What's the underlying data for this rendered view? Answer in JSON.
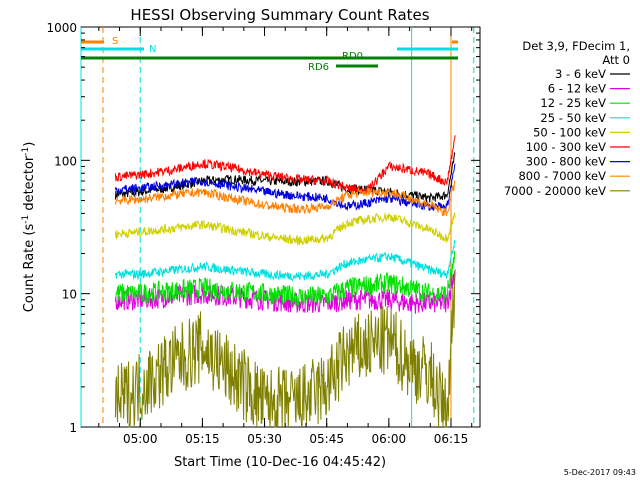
{
  "chart_data": {
    "type": "line",
    "title": "HESSI Observing Summary Count Rates",
    "xlabel": "Start Time (10-Dec-16 04:45:42)",
    "ylabel": "Count Rate (s",
    "ylabel_sup": "-1",
    "ylabel_mid": " detector",
    "ylabel_end": ")",
    "yscale": "log",
    "ylim": [
      1,
      1000
    ],
    "y_ticks": [
      "1",
      "10",
      "100",
      "1000"
    ],
    "x_range_minutes": [
      "04:45:42",
      "06:22:00"
    ],
    "x_ticks": [
      "05:00",
      "05:15",
      "05:30",
      "05:45",
      "06:00",
      "06:15"
    ],
    "timestamp": "5-Dec-2017 09:43",
    "legend_header": [
      "Det 3,9, FDecim 1,",
      "Att 0"
    ],
    "legend_position": "right",
    "grid": false,
    "flags": [
      {
        "label": "S",
        "color": "#ff8000"
      },
      {
        "label": "N",
        "color": "#00e0e0"
      },
      {
        "label": "RD0",
        "color": "#008000"
      },
      {
        "label": "RD6",
        "color": "#008000"
      }
    ],
    "vertical_markers": [
      {
        "time": "04:51:00",
        "color": "#ff8000",
        "style": "dashed"
      },
      {
        "time": "05:00:00",
        "color": "#00e0e0",
        "style": "dashed"
      },
      {
        "time": "06:05:30",
        "color": "#00e0e0",
        "style": "solid"
      },
      {
        "time": "06:15:00",
        "color": "#ff8000",
        "style": "solid"
      },
      {
        "time": "06:20:30",
        "color": "#00e0e0",
        "style": "dashed"
      },
      {
        "time": "04:45:42",
        "color": "#00e0e0",
        "style": "solid"
      }
    ],
    "series": [
      {
        "name": "3 - 6 keV",
        "color": "#000000",
        "x": [
          "04:54",
          "05:00",
          "05:08",
          "05:15",
          "05:22",
          "05:30",
          "05:38",
          "05:45",
          "05:50",
          "05:55",
          "06:00",
          "06:05",
          "06:10",
          "06:14",
          "06:16"
        ],
        "y": [
          55,
          58,
          63,
          70,
          72,
          70,
          69,
          70,
          61,
          60,
          58,
          55,
          52,
          55,
          110
        ]
      },
      {
        "name": "6 - 12 keV",
        "color": "#e000e0",
        "x": [
          "04:54",
          "05:00",
          "05:08",
          "05:15",
          "05:22",
          "05:30",
          "05:38",
          "05:45",
          "05:50",
          "05:55",
          "06:00",
          "06:05",
          "06:10",
          "06:14",
          "06:16"
        ],
        "y": [
          9,
          9,
          9.5,
          10,
          9.5,
          9,
          8.5,
          8.5,
          9,
          9,
          9,
          8.5,
          8.5,
          8.5,
          15
        ]
      },
      {
        "name": "12 - 25 keV",
        "color": "#00e000",
        "x": [
          "04:54",
          "05:00",
          "05:08",
          "05:15",
          "05:22",
          "05:30",
          "05:38",
          "05:45",
          "05:50",
          "05:55",
          "06:00",
          "06:05",
          "06:10",
          "06:14",
          "06:16"
        ],
        "y": [
          10,
          10,
          10.5,
          11,
          10.5,
          10,
          9.5,
          9.5,
          11,
          11.5,
          12,
          11,
          10,
          10,
          18
        ]
      },
      {
        "name": "25 - 50 keV",
        "color": "#00e0e0",
        "x": [
          "04:54",
          "05:00",
          "05:08",
          "05:15",
          "05:22",
          "05:30",
          "05:38",
          "05:45",
          "05:50",
          "05:55",
          "06:00",
          "06:05",
          "06:10",
          "06:14",
          "06:16"
        ],
        "y": [
          14,
          14,
          15,
          16,
          15,
          14,
          13.5,
          14,
          17,
          18,
          19,
          17,
          15,
          14,
          25
        ]
      },
      {
        "name": "50 - 100 keV",
        "color": "#d0d000",
        "x": [
          "04:54",
          "05:00",
          "05:08",
          "05:15",
          "05:22",
          "05:30",
          "05:38",
          "05:45",
          "05:50",
          "05:55",
          "06:00",
          "06:05",
          "06:10",
          "06:14",
          "06:16"
        ],
        "y": [
          28,
          29,
          31,
          33,
          30,
          27,
          25,
          26,
          34,
          36,
          38,
          34,
          30,
          26,
          40
        ]
      },
      {
        "name": "100 - 300 keV",
        "color": "#ff0000",
        "x": [
          "04:54",
          "05:00",
          "05:08",
          "05:15",
          "05:22",
          "05:30",
          "05:38",
          "05:45",
          "05:50",
          "05:55",
          "06:00",
          "06:05",
          "06:10",
          "06:14",
          "06:16"
        ],
        "y": [
          75,
          78,
          85,
          95,
          88,
          78,
          72,
          70,
          62,
          60,
          90,
          85,
          78,
          68,
          150
        ]
      },
      {
        "name": "300 - 800 keV",
        "color": "#0000e0",
        "x": [
          "04:54",
          "05:00",
          "05:08",
          "05:15",
          "05:22",
          "05:30",
          "05:38",
          "05:45",
          "05:50",
          "05:55",
          "06:00",
          "06:05",
          "06:10",
          "06:14",
          "06:16"
        ],
        "y": [
          60,
          62,
          66,
          70,
          64,
          58,
          54,
          52,
          45,
          48,
          52,
          48,
          45,
          44,
          95
        ]
      },
      {
        "name": "800 - 7000 keV",
        "color": "#ff8000",
        "x": [
          "04:54",
          "05:00",
          "05:08",
          "05:15",
          "05:22",
          "05:30",
          "05:38",
          "05:45",
          "05:50",
          "05:55",
          "06:00",
          "06:05",
          "06:10",
          "06:14",
          "06:16"
        ],
        "y": [
          50,
          51,
          55,
          58,
          52,
          46,
          43,
          45,
          55,
          58,
          58,
          52,
          46,
          40,
          70
        ]
      },
      {
        "name": "7000 - 20000 keV",
        "color": "#808000",
        "x": [
          "04:54",
          "05:00",
          "05:08",
          "05:15",
          "05:22",
          "05:30",
          "05:38",
          "05:45",
          "05:50",
          "05:55",
          "06:00",
          "06:05",
          "06:10",
          "06:14",
          "06:16"
        ],
        "y": [
          1.5,
          2,
          3,
          4,
          2.5,
          1.5,
          1.5,
          2,
          3.5,
          4,
          4.5,
          3,
          2.5,
          1.2,
          14
        ]
      }
    ]
  }
}
